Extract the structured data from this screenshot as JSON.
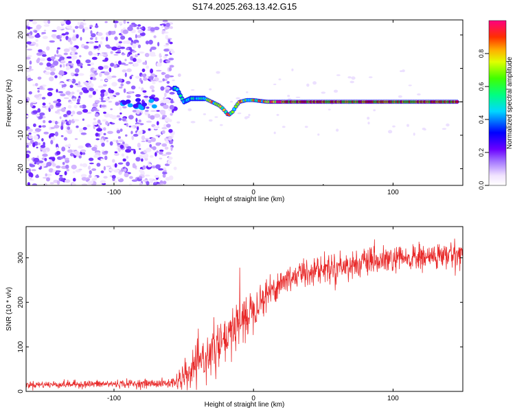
{
  "title": "S174.2025.263.13.42.G15",
  "chart_data": [
    {
      "type": "heatmap",
      "title": "S174.2025.263.13.42.G15",
      "xlabel": "Height of straight line (km)",
      "ylabel": "Frequency (Hz)",
      "xlim": [
        -163,
        150
      ],
      "ylim": [
        -25,
        24.5
      ],
      "xticks": [
        -100,
        0,
        100
      ],
      "yticks": [
        -20,
        -10,
        0,
        10,
        20
      ],
      "ridge": {
        "x": [
          -55,
          -50,
          -45,
          -40,
          -35,
          -30,
          -25,
          -22,
          -20,
          -18,
          -15,
          -12,
          -10,
          -5,
          0,
          10,
          20,
          50,
          100,
          150
        ],
        "frequency": [
          4,
          0,
          1,
          1,
          1,
          0,
          -1,
          -2,
          -3,
          -4,
          -3,
          -1,
          0,
          0.5,
          0.5,
          0,
          0,
          0,
          0,
          0
        ]
      },
      "colorbar": {
        "label": "Normalized spectral amplitude",
        "ticks": [
          "0.0",
          "0.2",
          "0.4",
          "0.6",
          "0.8"
        ],
        "range": [
          0,
          1
        ]
      }
    },
    {
      "type": "line",
      "xlabel": "Height of straight line (km)",
      "ylabel": "SNR (10 * v/v)",
      "xlim": [
        -163,
        150
      ],
      "ylim": [
        0,
        370
      ],
      "xticks": [
        -100,
        0,
        100
      ],
      "yticks": [
        0,
        100,
        200,
        300
      ],
      "color": "#e82a2a",
      "trend": {
        "x": [
          -163,
          -60,
          -50,
          -40,
          -30,
          -20,
          -10,
          0,
          10,
          20,
          30,
          40,
          60,
          80,
          100,
          120,
          140,
          150
        ],
        "snr": [
          15,
          18,
          28,
          60,
          90,
          110,
          150,
          190,
          220,
          245,
          260,
          270,
          280,
          288,
          295,
          300,
          305,
          310
        ]
      },
      "noise": {
        "x": [
          -163,
          -60,
          -50,
          -30,
          -10,
          0,
          20,
          60,
          150
        ],
        "amplitude": [
          7,
          9,
          30,
          45,
          55,
          40,
          30,
          28,
          28
        ]
      }
    }
  ]
}
